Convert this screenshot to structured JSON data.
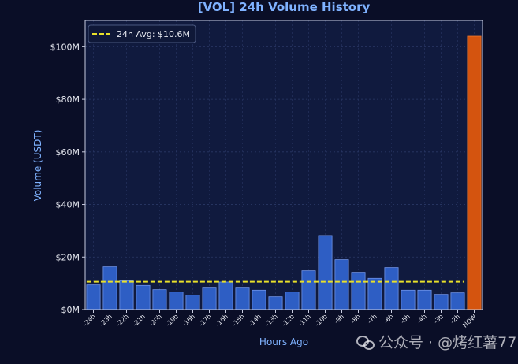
{
  "chart_data": {
    "type": "bar",
    "title": "[VOL] 24h Volume History",
    "xlabel": "Hours Ago",
    "ylabel": "Volume (USDT)",
    "ylim": [
      0,
      110
    ],
    "y_unit": "M",
    "yticks": [
      0,
      20,
      40,
      60,
      80,
      100
    ],
    "ytick_labels": [
      "$0M",
      "$20M",
      "$40M",
      "$60M",
      "$80M",
      "$100M"
    ],
    "categories": [
      "-24h",
      "-23h",
      "-22h",
      "-21h",
      "-20h",
      "-19h",
      "-18h",
      "-17h",
      "-16h",
      "-15h",
      "-14h",
      "-13h",
      "-12h",
      "-11h",
      "-10h",
      "-9h",
      "-8h",
      "-7h",
      "-6h",
      "-5h",
      "-4h",
      "-3h",
      "-2h",
      "NOW"
    ],
    "values": [
      9.4,
      16.3,
      11.0,
      9.2,
      7.6,
      6.7,
      5.5,
      8.5,
      10.5,
      8.5,
      7.4,
      4.9,
      6.7,
      14.8,
      28.2,
      19.0,
      14.2,
      11.9,
      16.0,
      7.4,
      7.4,
      5.8,
      6.4,
      104.0
    ],
    "highlight_index": 23,
    "average": 10.6,
    "legend": {
      "label": "24h Avg: $10.6M",
      "position": "top-left"
    },
    "grid": true,
    "colors": {
      "bar": "#2e5ec4",
      "bar_edge": "#6f93e8",
      "highlight": "#d4540f",
      "highlight_edge": "#f07a30",
      "average_line": "#e8e02a",
      "title": "#7fb2ff",
      "axis_label": "#7fb2ff",
      "tick": "#e6e8f0",
      "plot_bg": "#101a3e",
      "figure_bg": "#0a0e27",
      "grid": "#2a3866",
      "spine": "#c8cce0"
    }
  },
  "watermark": {
    "text": "公众号 · @烤红薯77",
    "icon": "wechat-icon"
  }
}
